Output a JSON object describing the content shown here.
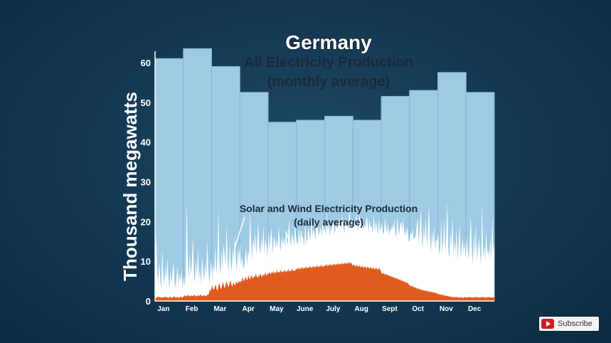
{
  "chart_data": {
    "type": "bar",
    "title": "Germany",
    "subtitle_line1": "All Electricity Production",
    "subtitle_line2": "(monthly average)",
    "ylabel": "Thousand megawatts",
    "ylim": [
      0,
      65
    ],
    "yticks": [
      0,
      10,
      20,
      30,
      40,
      50,
      60
    ],
    "categories": [
      "Jan",
      "Feb",
      "Mar",
      "Apr",
      "May",
      "June",
      "July",
      "Aug",
      "Sept",
      "Oct",
      "Nov",
      "Dec"
    ],
    "values": [
      61,
      63.5,
      59,
      52.5,
      45,
      45.5,
      46.5,
      45.5,
      51.5,
      53,
      57.5,
      52.5
    ],
    "annotation_line1": "Solar and Wind Electricity Production",
    "annotation_line2": "(daily average)",
    "series": [
      {
        "description": "wind",
        "daily_approx": [
          4,
          16,
          7,
          3,
          9,
          5,
          2,
          12,
          6,
          3,
          8,
          4,
          10,
          5,
          2,
          7,
          3,
          6,
          9,
          4,
          2,
          5,
          8,
          3,
          6,
          4,
          7,
          2,
          5,
          3,
          6,
          24,
          9,
          4,
          11,
          5,
          8,
          15,
          6,
          3,
          9,
          5,
          12,
          4,
          7,
          3,
          10,
          6,
          4,
          8,
          5,
          14,
          7,
          3,
          6,
          9,
          4,
          8,
          5,
          11,
          4,
          7,
          20,
          6,
          3,
          9,
          5,
          12,
          8,
          4,
          16,
          7,
          3,
          10,
          6,
          4,
          9,
          5,
          13,
          7,
          3,
          8,
          6,
          11,
          4,
          7,
          5,
          3,
          6,
          9,
          4,
          8,
          6,
          18,
          9,
          5,
          11,
          7,
          12,
          6,
          9,
          14,
          8,
          5,
          10,
          7,
          13,
          6,
          9,
          8,
          5,
          11,
          7,
          9,
          12,
          6,
          8,
          10,
          6,
          9,
          7,
          12,
          8,
          5,
          10,
          7,
          9,
          6,
          11,
          8,
          7,
          13,
          9,
          6,
          10,
          8,
          7,
          12,
          9,
          6,
          8,
          11,
          7,
          10,
          9,
          8,
          6,
          12,
          7,
          8,
          11,
          9,
          7,
          13,
          8,
          10,
          9,
          7,
          12,
          11,
          8,
          9,
          10,
          8,
          12,
          9,
          10,
          8,
          14,
          9,
          11,
          8,
          10,
          9,
          12,
          10,
          8,
          11,
          9,
          10,
          12,
          11,
          9,
          13,
          10,
          8,
          11,
          12,
          10,
          9,
          14,
          11,
          9,
          12,
          10,
          11,
          9,
          13,
          10,
          8,
          12,
          11,
          9,
          10,
          8,
          10,
          9,
          12,
          10,
          8,
          11,
          9,
          10,
          8,
          13,
          9,
          11,
          10,
          8,
          12,
          9,
          10,
          11,
          8,
          9,
          12,
          10,
          9,
          11,
          8,
          10,
          9,
          11,
          10,
          12,
          9,
          8,
          13,
          10,
          9,
          11,
          12,
          10,
          14,
          9,
          11,
          10,
          12,
          9,
          8,
          11,
          10,
          12,
          9,
          10,
          10,
          13,
          15,
          9,
          12,
          18,
          11,
          8,
          14,
          10,
          16,
          9,
          12,
          20,
          11,
          8,
          13,
          10,
          15,
          9,
          12,
          11,
          14,
          8,
          10,
          17,
          9,
          12,
          18,
          9,
          14,
          22,
          10,
          8,
          15,
          11,
          19,
          9,
          13,
          10,
          16,
          8,
          12,
          17,
          9,
          11,
          14,
          10,
          13,
          9,
          15,
          11,
          9,
          14,
          20,
          11,
          8,
          16,
          10,
          18,
          9,
          12,
          15,
          11,
          8,
          24,
          10,
          13,
          9,
          17,
          11,
          12,
          10,
          15,
          9,
          20,
          11,
          14
        ]
      },
      {
        "description": "solar",
        "daily_approx": [
          0.8,
          1,
          0.7,
          1.2,
          0.9,
          1,
          0.8,
          1.1,
          0.7,
          1,
          0.9,
          1.2,
          0.8,
          1,
          0.9,
          0.7,
          1.1,
          1,
          0.8,
          0.9,
          1.2,
          1,
          0.8,
          0.9,
          1.1,
          0.7,
          1,
          0.9,
          1.2,
          0.8,
          1,
          1.2,
          1.5,
          1.1,
          1.3,
          1.6,
          1.2,
          1.4,
          1.1,
          1.5,
          1.3,
          1.2,
          1.6,
          1.4,
          1.1,
          1.3,
          1.5,
          1.2,
          1.4,
          1.6,
          1.3,
          1.1,
          1.5,
          1.4,
          1.2,
          1.3,
          1.6,
          1.5,
          2,
          3,
          2.5,
          4,
          3.2,
          2.8,
          3.5,
          4.2,
          3,
          2.6,
          3.8,
          4.5,
          3.4,
          3,
          4,
          4.8,
          3.6,
          3.2,
          4.4,
          5,
          3.8,
          3.5,
          4.6,
          5.2,
          4,
          3.6,
          4.8,
          4.2,
          3.9,
          5,
          4.4,
          4.6,
          5.1,
          4.5,
          5.2,
          4.8,
          6,
          5.4,
          5,
          6.2,
          5.6,
          5.2,
          6.4,
          5.8,
          5.4,
          6.6,
          6,
          5.6,
          6.3,
          5.9,
          6.8,
          6.2,
          5.8,
          6.5,
          6.1,
          7,
          6.4,
          6,
          6.8,
          6.3,
          7.2,
          6.6,
          6.4,
          7,
          6.8,
          7.4,
          6.6,
          7.2,
          7,
          7.6,
          6.8,
          7.3,
          7.1,
          7.8,
          7,
          7.4,
          7.2,
          7.9,
          7.1,
          7.5,
          7.3,
          8,
          7.2,
          7.6,
          7.4,
          8.1,
          7.3,
          7.7,
          7.5,
          8.2,
          7.4,
          7.8,
          7.6,
          7.8,
          8.2,
          8,
          8.5,
          7.9,
          8.3,
          8.1,
          8.6,
          8,
          8.4,
          8.2,
          8.8,
          8.1,
          8.5,
          8.3,
          8.9,
          8.2,
          8.6,
          8.4,
          9,
          8.3,
          8.7,
          8.5,
          9.1,
          8.4,
          8.8,
          8.6,
          9.2,
          8.5,
          8.9,
          8.6,
          9,
          8.8,
          9.3,
          8.7,
          9.1,
          8.9,
          9.4,
          8.8,
          9.2,
          9,
          9.5,
          8.9,
          9.3,
          9.1,
          9.6,
          9,
          9.4,
          9.2,
          9.7,
          9.1,
          9.5,
          9.3,
          9.8,
          9.2,
          9.6,
          9.4,
          9.9,
          9.3,
          9.7,
          9.5,
          8.8,
          9.2,
          9,
          8.6,
          9.1,
          8.8,
          8.5,
          9,
          8.7,
          8.4,
          8.9,
          8.6,
          8.3,
          8.8,
          8.5,
          8.2,
          8.7,
          8.4,
          8.1,
          8.6,
          8.3,
          8,
          8.5,
          8.2,
          7.9,
          8.4,
          8.1,
          7.8,
          8.3,
          8,
          7.7,
          7,
          6.8,
          7.2,
          6.6,
          6.9,
          6.5,
          6.8,
          6.3,
          6.6,
          6.1,
          6.4,
          5.9,
          6.2,
          5.8,
          6,
          5.6,
          5.9,
          5.4,
          5.7,
          5.2,
          5.5,
          5,
          5.3,
          4.8,
          5.1,
          4.6,
          4.9,
          4.4,
          4.7,
          4.2,
          4,
          3.8,
          3.6,
          3.9,
          3.4,
          3.6,
          3.2,
          3.5,
          3,
          3.3,
          2.9,
          3.1,
          2.7,
          3,
          2.6,
          2.8,
          2.5,
          2.7,
          2.4,
          2.6,
          2.3,
          2.5,
          2.2,
          2.4,
          2.1,
          2.3,
          2,
          2.2,
          1.9,
          2.1,
          1.8,
          1.8,
          1.6,
          1.7,
          1.5,
          1.6,
          1.4,
          1.5,
          1.3,
          1.4,
          1.2,
          1.3,
          1.1,
          1.2,
          1,
          1.1,
          1,
          0.9,
          1,
          0.9,
          1.1,
          0.9,
          1,
          0.8,
          0.9,
          1,
          0.8,
          0.9,
          0.8,
          1,
          0.9,
          0.9,
          1,
          0.8,
          1.1,
          0.9,
          1,
          0.8,
          0.9,
          1,
          0.8,
          1.1,
          0.9,
          1,
          0.8,
          0.9,
          1,
          0.8,
          1.1,
          0.9,
          1,
          0.8,
          0.9,
          1,
          0.8,
          1.1,
          0.9,
          1,
          0.8,
          0.9,
          1,
          0.8
        ]
      }
    ],
    "colors": {
      "monthly_bar": "#9ecae4",
      "bar_divider": "#85b6d3",
      "wind_fill": "#ffffff",
      "solar_fill": "#e15a1e",
      "axis": "#ffffff",
      "text_dark": "#1a2a3a",
      "text_title": "#ffffff"
    },
    "grid": false
  },
  "overlay": {
    "subscribe_label": "Subscribe",
    "subscribe_icon": "youtube-play-icon"
  }
}
